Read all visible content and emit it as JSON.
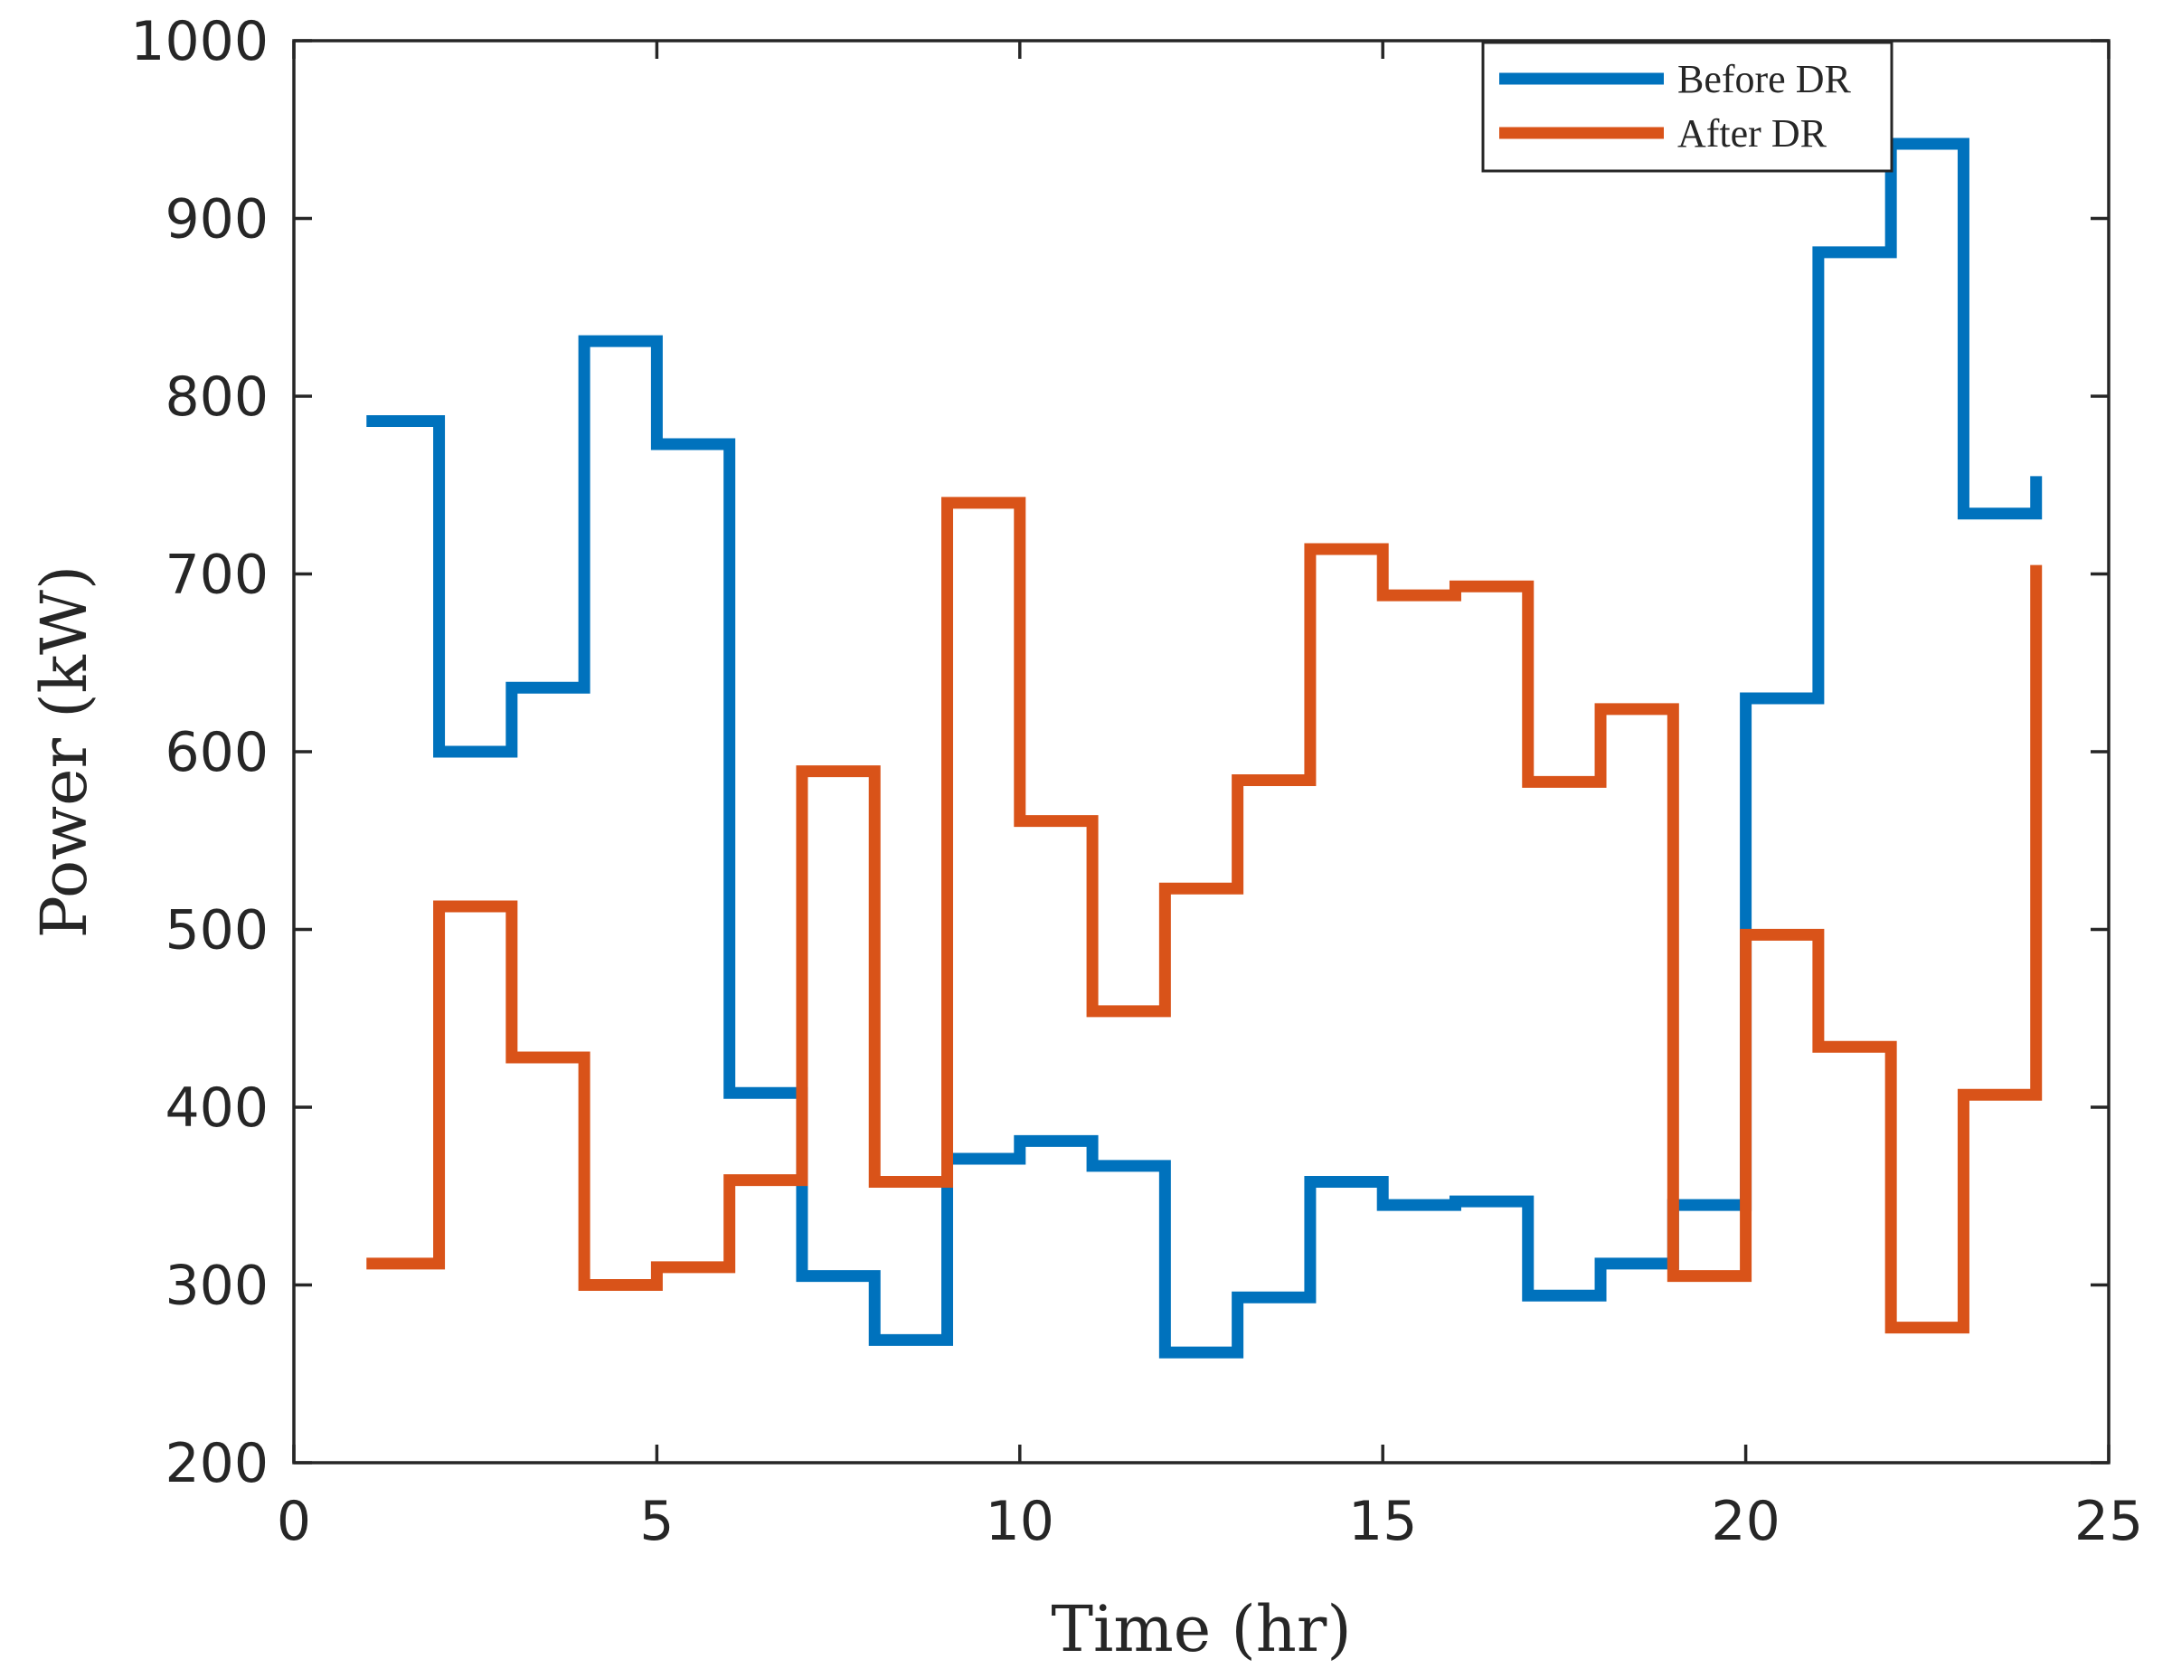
{
  "chart_data": {
    "type": "line",
    "step": true,
    "xlabel": "Time (hr)",
    "ylabel": "Power (kW)",
    "xlim": [
      0,
      25
    ],
    "ylim": [
      200,
      1000
    ],
    "xticks": [
      "0",
      "5",
      "10",
      "15",
      "20",
      "25"
    ],
    "yticks": [
      "200",
      "300",
      "400",
      "500",
      "600",
      "700",
      "800",
      "900",
      "1000"
    ],
    "grid": false,
    "legend_position": "top-right",
    "x": [
      1,
      2,
      3,
      4,
      5,
      6,
      7,
      8,
      9,
      10,
      11,
      12,
      13,
      14,
      15,
      16,
      17,
      18,
      19,
      20,
      21,
      22,
      23,
      24
    ],
    "series": [
      {
        "name": "Before DR",
        "color": "#0072bd",
        "values": [
          786,
          600,
          636,
          831,
          773,
          408,
          305,
          269,
          371,
          381,
          367,
          262,
          293,
          358,
          345,
          347,
          294,
          312,
          345,
          630,
          881,
          942,
          734,
          755
        ]
      },
      {
        "name": "After DR",
        "color": "#d95319",
        "values": [
          312,
          513,
          428,
          300,
          310,
          359,
          589,
          358,
          740,
          561,
          454,
          523,
          584,
          714,
          688,
          693,
          583,
          624,
          305,
          497,
          434,
          276,
          407,
          705
        ]
      }
    ]
  }
}
